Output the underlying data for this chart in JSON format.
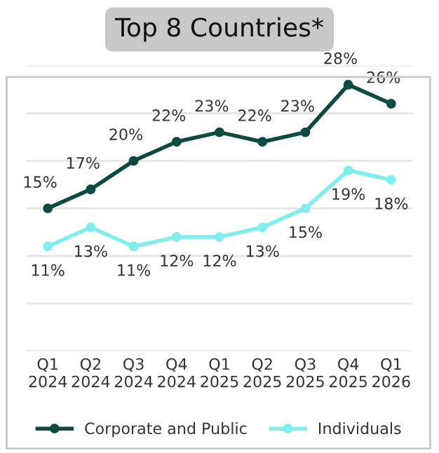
{
  "chart_data": {
    "type": "line",
    "title": "Top 8 Countries*",
    "categories": [
      "Q1\n2024",
      "Q2\n2024",
      "Q3\n2024",
      "Q4\n2024",
      "Q1\n2025",
      "Q2\n2025",
      "Q3\n2025",
      "Q4\n2025",
      "Q1\n2026"
    ],
    "series": [
      {
        "name": "Corporate and Public",
        "color": "#0d4a42",
        "values": [
          15,
          17,
          20,
          22,
          23,
          22,
          23,
          28,
          26
        ],
        "value_labels": [
          "15%",
          "17%",
          "20%",
          "22%",
          "23%",
          "22%",
          "23%",
          "28%",
          "26%"
        ]
      },
      {
        "name": "Individuals",
        "color": "#80eeee",
        "values": [
          11,
          13,
          11,
          12,
          12,
          13,
          15,
          19,
          18
        ],
        "value_labels": [
          "11%",
          "13%",
          "11%",
          "12%",
          "12%",
          "13%",
          "15%",
          "19%",
          "18%"
        ]
      }
    ],
    "ylim": [
      0,
      30
    ],
    "yticks": [
      {
        "value": 0,
        "label": null
      },
      {
        "value": 5,
        "label": null
      },
      {
        "value": 10,
        "label": null
      },
      {
        "value": 15,
        "label": null
      },
      {
        "value": 20,
        "label": null
      },
      {
        "value": 25,
        "label": null
      },
      {
        "value": 30,
        "label": null
      }
    ],
    "grid": "y",
    "legend": "bottom",
    "marker": "circle",
    "line_style": "solid",
    "tick_labels": "x"
  }
}
